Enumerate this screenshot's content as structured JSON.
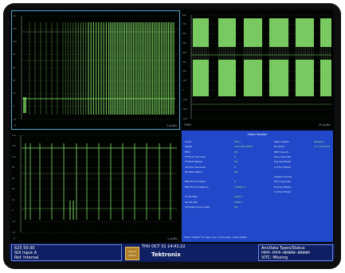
{
  "panes": {
    "waveform_tl": {
      "scale_labels": [
        "140",
        "120",
        "100",
        "80",
        "60",
        "40",
        "20",
        "0",
        "-20"
      ],
      "units": "Y",
      "sweep": "2 µs/Div"
    },
    "waveform_tr": {
      "scale_labels": [
        "800",
        "700",
        "600",
        "500",
        "400",
        "300",
        "200",
        "100",
        "0",
        "-100",
        "-200",
        "-300"
      ],
      "units": "YPbPr",
      "sweep": "35 µs/Div"
    },
    "waveform_bl": {
      "scale_labels": [
        "140",
        "120",
        "100",
        "80",
        "60",
        "40",
        "20",
        "0",
        "-20",
        "-40"
      ],
      "units": "Y",
      "sweep": "1 µs/Div"
    }
  },
  "video_session": {
    "title": "Video Session",
    "rows": [
      {
        "label": "Input:",
        "value": "SDI A",
        "label2": "Data Collect:",
        "value2": "Stopped"
      },
      {
        "label": "Signal:",
        "value": "Auto 625 49/20",
        "label2": "Runtime:",
        "value2": "0 d, 00:00:00"
      },
      {
        "label": "EDH:",
        "value": "OK",
        "label2": "EDH Counts:",
        "value2": ""
      },
      {
        "label": "FF Error Seconds:",
        "value": "0",
        "label2": "Error seconds:",
        "value2": ""
      },
      {
        "label": "FF EDH Status:",
        "value": "OK",
        "label2": "Errored Fields:",
        "value2": ""
      },
      {
        "label": "AP Error Seconds:",
        "value": "Z",
        "label2": "% Error Fields:",
        "value2": ""
      },
      {
        "label": "AP EDH Status:",
        "value": "OK",
        "label2": "",
        "value2": ""
      },
      {
        "label": "",
        "value": "",
        "label2": "Output Counts:",
        "value2": ""
      },
      {
        "label": "EDH Errors Fields:",
        "value": "0",
        "label2": "Error seconds:",
        "value2": ""
      },
      {
        "label": "EDH Errors Fields %:",
        "value": "0.0000 %",
        "label2": "Errored Fields:",
        "value2": ""
      },
      {
        "label": "",
        "value": "",
        "label2": "% Error Fields:",
        "value2": ""
      },
      {
        "label": "FF AP CRC:",
        "value": "0000 h",
        "label2": "",
        "value2": ""
      },
      {
        "label": "AP AP CRC:",
        "value": "0000 h",
        "label2": "",
        "value2": ""
      },
      {
        "label": "Changed since reset:",
        "value": "Yes",
        "label2": "",
        "value2": ""
      }
    ],
    "footnote": "Press \"Select\" to reset.   Any \"arrow key\" clears Stalls."
  },
  "status_bar": {
    "format": "625 50.00",
    "input": "SDI Input A",
    "ref": "Ref: Internal",
    "alarm_line1": "Alarms",
    "alarm_line2": "Muted",
    "datetime": "THU OCT 31 14:41:22",
    "brand": "Tektronix",
    "anc_title": "AncData Types/Status",
    "anc_codes": "PPPP--PPPP--MMMM--MMMM",
    "vitc": "VITC: Missing"
  },
  "colors": {
    "trace_green": "#86e86a",
    "panel_blue": "#2048c8",
    "status_blue": "#0f1f63",
    "highlight_border": "#58a6cf"
  }
}
